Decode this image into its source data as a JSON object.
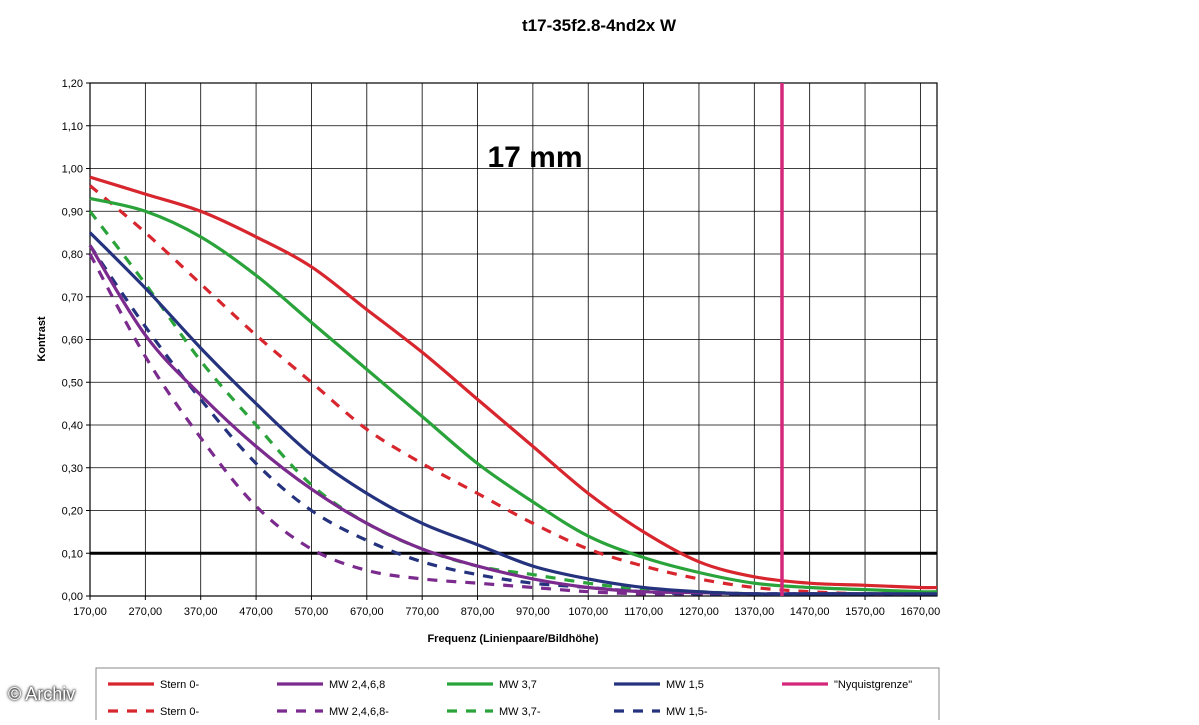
{
  "chart_data": {
    "type": "line",
    "title": "t17-35f2.8-4nd2x W",
    "annotation": "17 mm",
    "xlabel": "Frequenz (Linienpaare/Bildhöhe)",
    "ylabel": "Kontrast",
    "xlim": [
      170,
      1700
    ],
    "ylim": [
      0,
      1.2
    ],
    "x_ticks": [
      "170,00",
      "270,00",
      "370,00",
      "470,00",
      "570,00",
      "670,00",
      "770,00",
      "870,00",
      "970,00",
      "1070,00",
      "1170,00",
      "1270,00",
      "1370,00",
      "1470,00",
      "1570,00",
      "1670,00"
    ],
    "y_ticks": [
      "0,00",
      "0,10",
      "0,20",
      "0,30",
      "0,40",
      "0,50",
      "0,60",
      "0,70",
      "0,80",
      "0,90",
      "1,00",
      "1,10",
      "1,20"
    ],
    "grid": true,
    "reference_line_y": 0.1,
    "nyquist_x": 1420,
    "legend_position": "bottom",
    "series": [
      {
        "name": "Stern 0-",
        "color": "#d7262e",
        "dashed": false,
        "x": [
          170,
          270,
          370,
          470,
          570,
          670,
          770,
          870,
          970,
          1070,
          1170,
          1270,
          1370,
          1470,
          1570,
          1670,
          1700
        ],
        "y": [
          0.98,
          0.94,
          0.9,
          0.84,
          0.77,
          0.67,
          0.57,
          0.46,
          0.35,
          0.24,
          0.15,
          0.08,
          0.045,
          0.03,
          0.025,
          0.02,
          0.02
        ]
      },
      {
        "name": "MW 2,4,6,8",
        "color": "#7b2b8e",
        "dashed": false,
        "x": [
          170,
          270,
          370,
          470,
          570,
          670,
          770,
          870,
          970,
          1070,
          1170,
          1270,
          1370,
          1470,
          1570,
          1670,
          1700
        ],
        "y": [
          0.82,
          0.61,
          0.47,
          0.35,
          0.25,
          0.17,
          0.11,
          0.07,
          0.04,
          0.02,
          0.01,
          0.008,
          0.005,
          0.005,
          0.005,
          0.005,
          0.005
        ]
      },
      {
        "name": "MW 3,7",
        "color": "#2aa33a",
        "dashed": false,
        "x": [
          170,
          270,
          370,
          470,
          570,
          670,
          770,
          870,
          970,
          1070,
          1170,
          1270,
          1370,
          1470,
          1570,
          1670,
          1700
        ],
        "y": [
          0.93,
          0.9,
          0.84,
          0.75,
          0.64,
          0.53,
          0.42,
          0.31,
          0.22,
          0.14,
          0.09,
          0.055,
          0.03,
          0.02,
          0.015,
          0.01,
          0.01
        ]
      },
      {
        "name": "MW 1,5",
        "color": "#25337f",
        "dashed": false,
        "x": [
          170,
          270,
          370,
          470,
          570,
          670,
          770,
          870,
          970,
          1070,
          1170,
          1270,
          1370,
          1470,
          1570,
          1670,
          1700
        ],
        "y": [
          0.85,
          0.72,
          0.58,
          0.45,
          0.33,
          0.24,
          0.17,
          0.12,
          0.07,
          0.04,
          0.02,
          0.01,
          0.005,
          0.005,
          0.005,
          0.005,
          0.005
        ]
      },
      {
        "name": "\"Nyquistgrenze\"",
        "color": "#d4267a",
        "dashed": false,
        "vertical_at_x": 1420
      },
      {
        "name": "Stern 0-",
        "color": "#d7262e",
        "dashed": true,
        "x": [
          170,
          270,
          370,
          470,
          570,
          670,
          770,
          870,
          970,
          1070,
          1170,
          1270,
          1370,
          1470,
          1570,
          1670,
          1700
        ],
        "y": [
          0.96,
          0.85,
          0.73,
          0.61,
          0.5,
          0.39,
          0.31,
          0.24,
          0.17,
          0.11,
          0.07,
          0.04,
          0.02,
          0.01,
          0.005,
          0.005,
          0.005
        ]
      },
      {
        "name": "MW 2,4,6,8-",
        "color": "#7b2b8e",
        "dashed": true,
        "x": [
          170,
          270,
          370,
          470,
          570,
          670,
          770,
          870,
          970,
          1070,
          1170,
          1270,
          1370,
          1470,
          1570,
          1670,
          1700
        ],
        "y": [
          0.8,
          0.56,
          0.37,
          0.21,
          0.11,
          0.06,
          0.04,
          0.03,
          0.02,
          0.01,
          0.005,
          0.005,
          0.005,
          0.005,
          0.005,
          0.005,
          0.005
        ]
      },
      {
        "name": "MW 3,7-",
        "color": "#2aa33a",
        "dashed": true,
        "x": [
          170,
          270,
          370,
          470,
          570,
          670,
          770,
          870,
          970,
          1070,
          1170,
          1270,
          1370,
          1470,
          1570,
          1670,
          1700
        ],
        "y": [
          0.9,
          0.73,
          0.55,
          0.4,
          0.26,
          0.17,
          0.11,
          0.07,
          0.05,
          0.03,
          0.015,
          0.01,
          0.005,
          0.005,
          0.005,
          0.005,
          0.005
        ]
      },
      {
        "name": "MW 1,5-",
        "color": "#25337f",
        "dashed": true,
        "x": [
          170,
          270,
          370,
          470,
          570,
          670,
          770,
          870,
          970,
          1070,
          1170,
          1270,
          1370,
          1470,
          1570,
          1670,
          1700
        ],
        "y": [
          0.82,
          0.63,
          0.46,
          0.31,
          0.2,
          0.13,
          0.08,
          0.05,
          0.03,
          0.02,
          0.01,
          0.005,
          0.005,
          0.005,
          0.005,
          0.005,
          0.005
        ]
      }
    ]
  },
  "watermark": "© Archiv"
}
